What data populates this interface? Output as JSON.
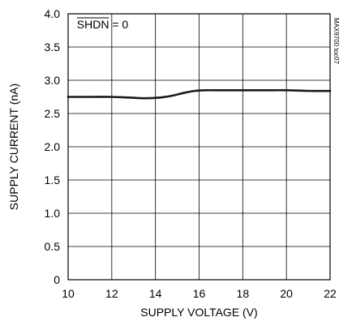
{
  "chart_data": {
    "type": "line",
    "title": "",
    "xlabel": "SUPPLY VOLTAGE (V)",
    "ylabel": "SUPPLY CURRENT (nA)",
    "xlim": [
      10,
      22
    ],
    "ylim": [
      0,
      4.0
    ],
    "x_ticks": [
      10,
      12,
      14,
      16,
      18,
      20,
      22
    ],
    "x_tick_labels": [
      "10",
      "12",
      "14",
      "16",
      "18",
      "20",
      "22"
    ],
    "y_ticks": [
      0,
      0.5,
      1.0,
      1.5,
      2.0,
      2.5,
      3.0,
      3.5,
      4.0
    ],
    "y_tick_labels": [
      "0",
      "0.5",
      "1.0",
      "1.5",
      "2.0",
      "2.5",
      "3.0",
      "3.5",
      "4.0"
    ],
    "grid": true,
    "legend": "none",
    "series": [
      {
        "x": [
          10,
          11,
          12,
          12.8,
          13.5,
          14.2,
          14.8,
          15.3,
          15.8,
          16.3,
          17,
          18,
          19,
          20,
          21,
          22
        ],
        "y": [
          2.75,
          2.75,
          2.75,
          2.74,
          2.73,
          2.74,
          2.77,
          2.81,
          2.84,
          2.85,
          2.85,
          2.85,
          2.85,
          2.85,
          2.84,
          2.84
        ],
        "color": "#1a1a1a"
      }
    ],
    "annotations": [
      {
        "text_overlined": "SHDN",
        "text_rest": " = 0",
        "x": 10.4,
        "y": 3.78
      }
    ],
    "side_note": "MAX9700 toc07"
  }
}
